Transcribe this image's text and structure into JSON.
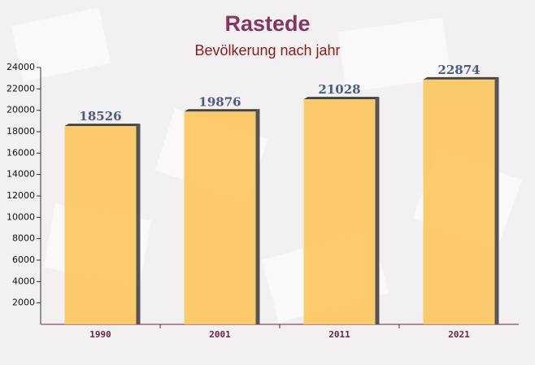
{
  "chart_data": {
    "type": "bar",
    "title": "Rastede",
    "subtitle": "Bevölkerung nach jahr",
    "categories": [
      "1990",
      "2001",
      "2011",
      "2021"
    ],
    "values": [
      18526,
      19876,
      21028,
      22874
    ],
    "color": "#fcc55e",
    "ylim": [
      0,
      24000
    ],
    "yticks": [
      2000,
      4000,
      6000,
      8000,
      10000,
      12000,
      14000,
      16000,
      18000,
      20000,
      22000,
      24000
    ]
  }
}
